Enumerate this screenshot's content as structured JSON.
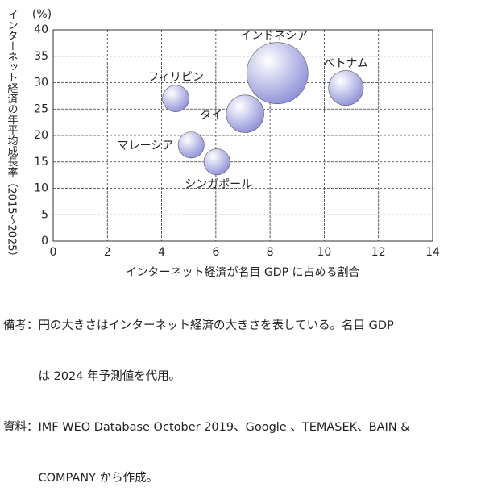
{
  "chart_data": {
    "type": "bubble",
    "unit_label": "(%)",
    "y_label": "インターネット経済の年平均成長率（2015～2025）",
    "x_label": "インターネット経済が名目 GDP に占める割合",
    "xlim": [
      0,
      14
    ],
    "xticks": [
      0,
      2,
      4,
      6,
      8,
      10,
      12,
      14
    ],
    "ylim": [
      0,
      40
    ],
    "yticks": [
      0,
      5,
      10,
      15,
      20,
      25,
      30,
      35,
      40
    ],
    "grid": true,
    "color": "#8d8fd8",
    "points": [
      {
        "label": "インドネシア",
        "x": 8.27,
        "y": 31.8,
        "size": 133
      },
      {
        "label": "ベトナム",
        "x": 10.8,
        "y": 29.0,
        "size": 43
      },
      {
        "label": "フィリピン",
        "x": 4.52,
        "y": 27.0,
        "size": 25
      },
      {
        "label": "タイ",
        "x": 7.08,
        "y": 24.1,
        "size": 50
      },
      {
        "label": "マレーシア",
        "x": 5.09,
        "y": 18.2,
        "size": 24
      },
      {
        "label": "シンガポール",
        "x": 6.04,
        "y": 15.0,
        "size": 24
      }
    ]
  },
  "notes": [
    "備考：円の大きさはインターネット経済の大きさを表している。名目 GDP",
    "　　　は 2024 年予測値を代用。",
    "資料：IMF WEO Database October 2019、Google 、TEMASEK、BAIN &",
    "　　　COMPANY から作成。"
  ]
}
